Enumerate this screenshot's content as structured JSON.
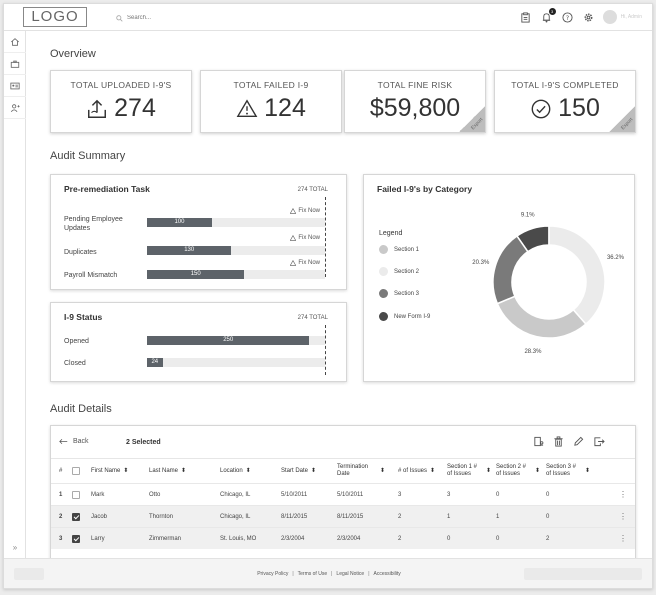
{
  "header": {
    "logo": "LOGO",
    "search_placeholder": "Search...",
    "notification_count": "3",
    "user_name": "Hi, Admin"
  },
  "sidebar": {
    "items": [
      "home-icon",
      "briefcase-icon",
      "id-card-icon",
      "add-user-icon"
    ],
    "expand": "»"
  },
  "overview": {
    "title": "Overview",
    "kpis": [
      {
        "label": "TOTAL UPLOADED I-9'S",
        "value": "274",
        "icon": "upload-icon"
      },
      {
        "label": "TOTAL FAILED I-9",
        "value": "124",
        "icon": "warning-icon"
      },
      {
        "label": "TOTAL FINE RISK",
        "value": "$59,800",
        "export": "Export"
      },
      {
        "label": "TOTAL I-9'S COMPLETED",
        "value": "150",
        "icon": "check-circle-icon",
        "export": "Export"
      }
    ]
  },
  "audit_summary": {
    "title": "Audit Summary",
    "pre_remediation": {
      "title": "Pre-remediation Task",
      "total": "274 TOTAL",
      "fix_label": "Fix Now",
      "max": 274,
      "rows": [
        {
          "label": "Pending Employee Updates",
          "value": 100
        },
        {
          "label": "Duplicates",
          "value": 130
        },
        {
          "label": "Payroll Mismatch",
          "value": 150
        }
      ]
    },
    "status": {
      "title": "I-9 Status",
      "total": "274 TOTAL",
      "max": 274,
      "rows": [
        {
          "label": "Opened",
          "value": 250
        },
        {
          "label": "Closed",
          "value": 24
        }
      ]
    },
    "failed_by_category": {
      "title": "Failed I-9's by Category",
      "legend_title": "Legend",
      "legend": [
        {
          "name": "Section 1",
          "color": "#c9c9c9"
        },
        {
          "name": "Section 2",
          "color": "#ebebeb"
        },
        {
          "name": "Section 3",
          "color": "#7a7a7a"
        },
        {
          "name": "New Form I-9",
          "color": "#4a4a4a"
        }
      ]
    }
  },
  "chart_data": {
    "type": "pie",
    "title": "Failed I-9's by Category",
    "labels": [
      "New Form I-9",
      "Section 2",
      "Section 1",
      "Section 3"
    ],
    "values": [
      9.1,
      36.2,
      28.3,
      20.3
    ],
    "value_labels": [
      "9.1%",
      "36.2%",
      "28.3%",
      "20.3%"
    ],
    "colors": [
      "#4a4a4a",
      "#ebebeb",
      "#c9c9c9",
      "#7a7a7a"
    ],
    "donut": true
  },
  "audit_details": {
    "title": "Audit Details",
    "back_label": "Back",
    "selected_label": "2 Selected",
    "columns": [
      "#",
      "First Name",
      "Last Name",
      "Location",
      "Start Date",
      "Termination Date",
      "# of Issues",
      "Section 1 # of Issues",
      "Section 2 # of Issues",
      "Section 3 # of Issues"
    ],
    "rows": [
      {
        "num": "1",
        "checked": false,
        "first": "Mark",
        "last": "Otto",
        "location": "Chicago, IL",
        "start": "5/10/2011",
        "term": "5/10/2011",
        "issues": "3",
        "s1": "3",
        "s2": "0",
        "s3": "0"
      },
      {
        "num": "2",
        "checked": true,
        "first": "Jacob",
        "last": "Thornton",
        "location": "Chicago, IL",
        "start": "8/11/2015",
        "term": "8/11/2015",
        "issues": "2",
        "s1": "1",
        "s2": "1",
        "s3": "0"
      },
      {
        "num": "3",
        "checked": true,
        "first": "Larry",
        "last": "Zimmerman",
        "location": "St. Louis, MO",
        "start": "2/3/2004",
        "term": "2/3/2004",
        "issues": "2",
        "s1": "0",
        "s2": "0",
        "s3": "2"
      }
    ]
  },
  "footer": {
    "links": [
      "Privacy Policy",
      "Terms of Use",
      "Legal Notice",
      "Accessibility"
    ]
  }
}
